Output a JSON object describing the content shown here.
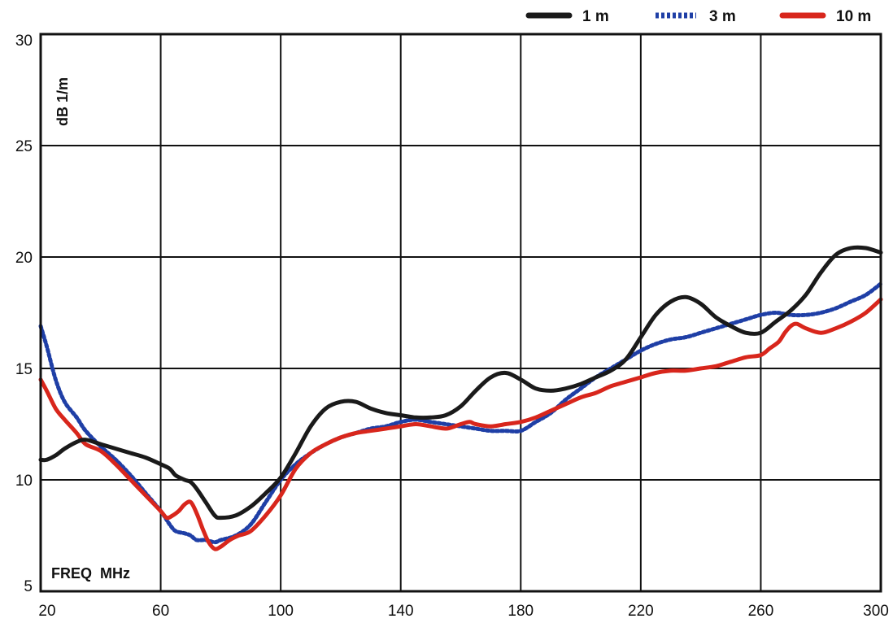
{
  "chart_data": {
    "type": "line",
    "title": "",
    "xlabel": "FREQ  MHz",
    "ylabel": "dB 1/m",
    "xlim": [
      20,
      300
    ],
    "ylim": [
      5,
      30
    ],
    "x_ticks": [
      20,
      60,
      100,
      140,
      180,
      220,
      260,
      300
    ],
    "y_ticks": [
      5,
      10,
      15,
      20,
      25,
      30
    ],
    "grid": true,
    "legend_position": "top-right",
    "series": [
      {
        "name": "1 m",
        "color": "#1a1a1a",
        "style": "solid",
        "x": [
          20,
          22,
          25,
          28,
          32,
          35,
          40,
          45,
          50,
          55,
          60,
          63,
          65,
          68,
          70,
          72,
          75,
          78,
          80,
          85,
          90,
          95,
          100,
          105,
          110,
          115,
          120,
          125,
          130,
          135,
          140,
          145,
          150,
          155,
          160,
          165,
          170,
          175,
          180,
          185,
          190,
          195,
          200,
          205,
          210,
          215,
          220,
          225,
          230,
          235,
          240,
          245,
          250,
          255,
          260,
          265,
          270,
          275,
          280,
          285,
          290,
          295,
          300
        ],
        "y": [
          10.9,
          10.9,
          11.1,
          11.4,
          11.7,
          11.8,
          11.6,
          11.4,
          11.2,
          11.0,
          10.7,
          10.5,
          10.2,
          10.0,
          9.9,
          9.6,
          9.0,
          8.4,
          8.3,
          8.4,
          8.8,
          9.4,
          10.1,
          11.2,
          12.4,
          13.2,
          13.5,
          13.5,
          13.2,
          13.0,
          12.9,
          12.8,
          12.8,
          12.9,
          13.3,
          14.0,
          14.6,
          14.8,
          14.5,
          14.1,
          14.0,
          14.1,
          14.3,
          14.6,
          14.9,
          15.4,
          16.4,
          17.4,
          18.0,
          18.2,
          17.9,
          17.3,
          16.9,
          16.6,
          16.6,
          17.1,
          17.6,
          18.3,
          19.3,
          20.1,
          20.4,
          20.4,
          20.2
        ]
      },
      {
        "name": "3 m",
        "color": "#1f3fa6",
        "style": "dotted",
        "x": [
          20,
          22,
          25,
          28,
          32,
          35,
          40,
          45,
          50,
          55,
          60,
          63,
          65,
          68,
          70,
          72,
          75,
          78,
          80,
          85,
          90,
          95,
          100,
          105,
          110,
          115,
          120,
          125,
          130,
          135,
          140,
          145,
          150,
          155,
          160,
          165,
          170,
          175,
          180,
          185,
          190,
          195,
          200,
          205,
          210,
          215,
          220,
          225,
          230,
          235,
          240,
          245,
          250,
          255,
          260,
          265,
          270,
          275,
          280,
          285,
          290,
          295,
          300
        ],
        "y": [
          16.9,
          16.0,
          14.5,
          13.5,
          12.8,
          12.2,
          11.5,
          10.9,
          10.2,
          9.4,
          8.6,
          8.0,
          7.7,
          7.6,
          7.5,
          7.3,
          7.3,
          7.2,
          7.3,
          7.5,
          8.0,
          9.0,
          10.0,
          10.7,
          11.2,
          11.6,
          11.9,
          12.1,
          12.3,
          12.4,
          12.6,
          12.7,
          12.6,
          12.5,
          12.4,
          12.3,
          12.2,
          12.2,
          12.2,
          12.6,
          13.0,
          13.6,
          14.1,
          14.6,
          15.0,
          15.4,
          15.8,
          16.1,
          16.3,
          16.4,
          16.6,
          16.8,
          17.0,
          17.2,
          17.4,
          17.5,
          17.4,
          17.4,
          17.5,
          17.7,
          18.0,
          18.3,
          18.8
        ]
      },
      {
        "name": "10 m",
        "color": "#d8261c",
        "style": "solid",
        "x": [
          20,
          22,
          25,
          28,
          32,
          35,
          40,
          45,
          50,
          55,
          60,
          62,
          64,
          66,
          68,
          70,
          72,
          74,
          76,
          78,
          80,
          83,
          86,
          90,
          95,
          100,
          105,
          110,
          115,
          120,
          125,
          130,
          135,
          140,
          145,
          150,
          155,
          158,
          160,
          163,
          165,
          170,
          175,
          180,
          185,
          190,
          195,
          200,
          205,
          210,
          215,
          220,
          225,
          230,
          235,
          240,
          245,
          250,
          255,
          260,
          263,
          266,
          268,
          270,
          272,
          275,
          280,
          285,
          290,
          295,
          300
        ],
        "y": [
          14.5,
          14.0,
          13.2,
          12.7,
          12.1,
          11.6,
          11.3,
          10.7,
          10.0,
          9.3,
          8.6,
          8.3,
          8.4,
          8.6,
          8.9,
          9.0,
          8.5,
          7.8,
          7.2,
          6.9,
          7.0,
          7.3,
          7.5,
          7.7,
          8.4,
          9.3,
          10.5,
          11.2,
          11.6,
          11.9,
          12.1,
          12.2,
          12.3,
          12.4,
          12.5,
          12.4,
          12.3,
          12.4,
          12.5,
          12.6,
          12.5,
          12.4,
          12.5,
          12.6,
          12.8,
          13.1,
          13.4,
          13.7,
          13.9,
          14.2,
          14.4,
          14.6,
          14.8,
          14.9,
          14.9,
          15.0,
          15.1,
          15.3,
          15.5,
          15.6,
          15.9,
          16.2,
          16.6,
          16.9,
          17.0,
          16.8,
          16.6,
          16.8,
          17.1,
          17.5,
          18.1
        ]
      }
    ]
  }
}
